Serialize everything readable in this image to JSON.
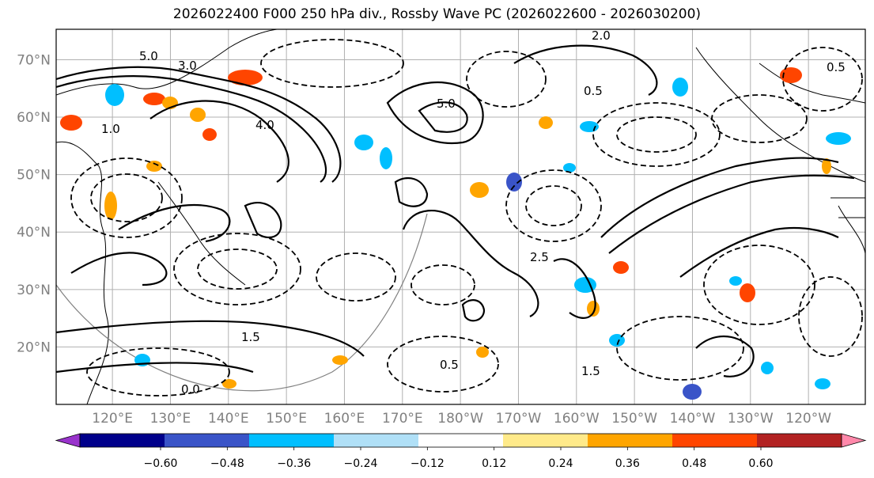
{
  "title": "2026022400 F000 250 hPa div., Rossby Wave PC (2026022600 - 2026030200)",
  "lat_ticks": [
    {
      "value": 70,
      "label": "70°N"
    },
    {
      "value": 60,
      "label": "60°N"
    },
    {
      "value": 50,
      "label": "50°N"
    },
    {
      "value": 40,
      "label": "40°N"
    },
    {
      "value": 30,
      "label": "30°N"
    },
    {
      "value": 20,
      "label": "20°N"
    }
  ],
  "lon_ticks": [
    {
      "value": 120,
      "label": "120°E"
    },
    {
      "value": 130,
      "label": "130°E"
    },
    {
      "value": 140,
      "label": "140°E"
    },
    {
      "value": 150,
      "label": "150°E"
    },
    {
      "value": 160,
      "label": "160°E"
    },
    {
      "value": 170,
      "label": "170°E"
    },
    {
      "value": 180,
      "label": "180°W"
    },
    {
      "value": 190,
      "label": "170°W"
    },
    {
      "value": 200,
      "label": "160°W"
    },
    {
      "value": 210,
      "label": "150°W"
    },
    {
      "value": 220,
      "label": "140°W"
    },
    {
      "value": 230,
      "label": "130°W"
    },
    {
      "value": 240,
      "label": "120°W"
    }
  ],
  "colorbar": {
    "bins": [
      {
        "color": "#9933cc"
      },
      {
        "color": "#00008b"
      },
      {
        "color": "#3a54c8"
      },
      {
        "color": "#00bfff"
      },
      {
        "color": "#b0e0f7"
      },
      {
        "color": "#ffffff"
      },
      {
        "color": "#ffea8a"
      },
      {
        "color": "#ffa500"
      },
      {
        "color": "#ff4500"
      },
      {
        "color": "#b22222"
      },
      {
        "color": "#ff88aa"
      }
    ],
    "labels": [
      "−0.60",
      "−0.48",
      "−0.36",
      "−0.24",
      "−0.12",
      "0.12",
      "0.24",
      "0.36",
      "0.48",
      "0.60"
    ]
  },
  "contour_labels": [
    "5.0",
    "3.0",
    "2.0",
    "0.5",
    "1.5",
    "1.0",
    "0.5",
    "2.5",
    "0.0",
    "4.0",
    "5.0",
    "1.5",
    "0.5"
  ],
  "colors": {
    "gridline": "#b0b0b0",
    "tick_text": "#808080",
    "contour": "#000000",
    "frame": "#000000"
  }
}
